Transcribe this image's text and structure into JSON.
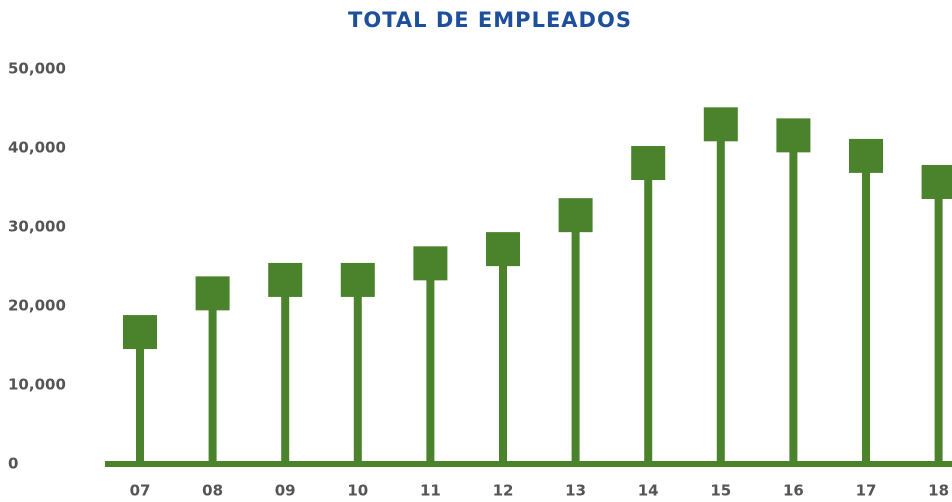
{
  "chart_data": {
    "type": "lollipop",
    "title": "TOTAL DE EMPLEADOS",
    "categories": [
      "07",
      "08",
      "09",
      "10",
      "11",
      "12",
      "13",
      "14",
      "15",
      "16",
      "17",
      "18"
    ],
    "values": [
      16700,
      21600,
      23300,
      23300,
      25400,
      27200,
      31500,
      38100,
      43000,
      41600,
      39000,
      35700
    ],
    "color": "#4a832b",
    "ylim": [
      0,
      50000
    ],
    "yticks": [
      0,
      {
        "value": 10000,
        "label": "10,000"
      },
      {
        "value": 20000,
        "label": "20,000"
      },
      {
        "value": 30000,
        "label": "30,000"
      },
      {
        "value": 40000,
        "label": "40,000"
      },
      {
        "value": 50000,
        "label": "50,000"
      }
    ],
    "grid": false
  }
}
